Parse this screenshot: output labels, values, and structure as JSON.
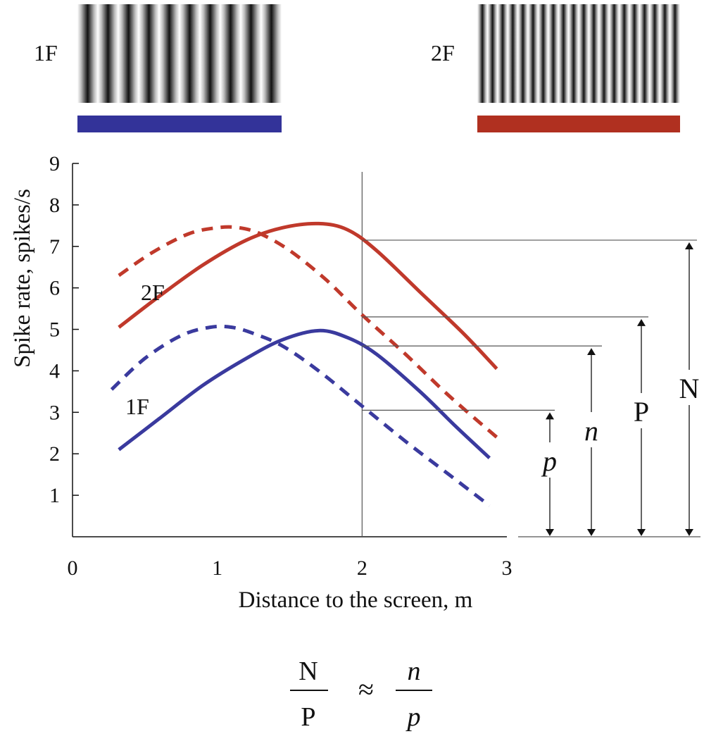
{
  "stimuli": [
    {
      "label": "1F",
      "bar_color": "#333399",
      "cycles": 10
    },
    {
      "label": "2F",
      "bar_color": "#b03020",
      "cycles": 20
    }
  ],
  "chart_data": {
    "type": "line",
    "title": "",
    "xlabel": "Distance to the screen, m",
    "ylabel": "Spike rate, spikes/s",
    "xlim": [
      0,
      3
    ],
    "ylim": [
      0,
      9
    ],
    "x_ticks": [
      "0",
      "1",
      "2",
      "3"
    ],
    "y_ticks": [
      "1",
      "2",
      "3",
      "4",
      "5",
      "6",
      "7",
      "8",
      "9"
    ],
    "reference_x": 2,
    "series": [
      {
        "name": "2F",
        "color": "#c0392b",
        "style": "solid",
        "x": [
          0.32,
          0.6,
          0.9,
          1.2,
          1.45,
          1.7,
          1.9,
          2.1,
          2.4,
          2.7,
          2.93
        ],
        "y": [
          5.05,
          5.8,
          6.55,
          7.15,
          7.45,
          7.55,
          7.4,
          6.9,
          5.9,
          4.9,
          4.05
        ]
      },
      {
        "name": "",
        "color": "#c0392b",
        "style": "dashed",
        "x": [
          0.32,
          0.55,
          0.8,
          1.0,
          1.15,
          1.3,
          1.5,
          1.75,
          2.0,
          2.3,
          2.6,
          2.93
        ],
        "y": [
          6.3,
          6.85,
          7.3,
          7.45,
          7.45,
          7.3,
          6.9,
          6.2,
          5.35,
          4.4,
          3.4,
          2.4
        ]
      },
      {
        "name": "1F",
        "color": "#3a3a9e",
        "style": "solid",
        "x": [
          0.32,
          0.6,
          0.9,
          1.2,
          1.45,
          1.7,
          1.9,
          2.1,
          2.4,
          2.65,
          2.88
        ],
        "y": [
          2.1,
          2.85,
          3.65,
          4.3,
          4.75,
          4.97,
          4.8,
          4.4,
          3.5,
          2.65,
          1.9
        ]
      },
      {
        "name": "",
        "color": "#3a3a9e",
        "style": "dashed",
        "x": [
          0.27,
          0.5,
          0.75,
          0.95,
          1.1,
          1.25,
          1.45,
          1.7,
          2.0,
          2.3,
          2.6,
          2.88
        ],
        "y": [
          3.55,
          4.3,
          4.85,
          5.05,
          5.05,
          4.9,
          4.6,
          4.0,
          3.15,
          2.3,
          1.5,
          0.75
        ]
      }
    ],
    "annotations": [
      {
        "label": "p",
        "value": 3.05,
        "italic": true
      },
      {
        "label": "n",
        "value": 4.6,
        "italic": true
      },
      {
        "label": "P",
        "value": 5.3,
        "italic": false
      },
      {
        "label": "N",
        "value": 7.15,
        "italic": false
      }
    ]
  },
  "formula": {
    "left_num": "N",
    "left_den": "P",
    "op": "≈",
    "right_num": "n",
    "right_den": "p"
  }
}
